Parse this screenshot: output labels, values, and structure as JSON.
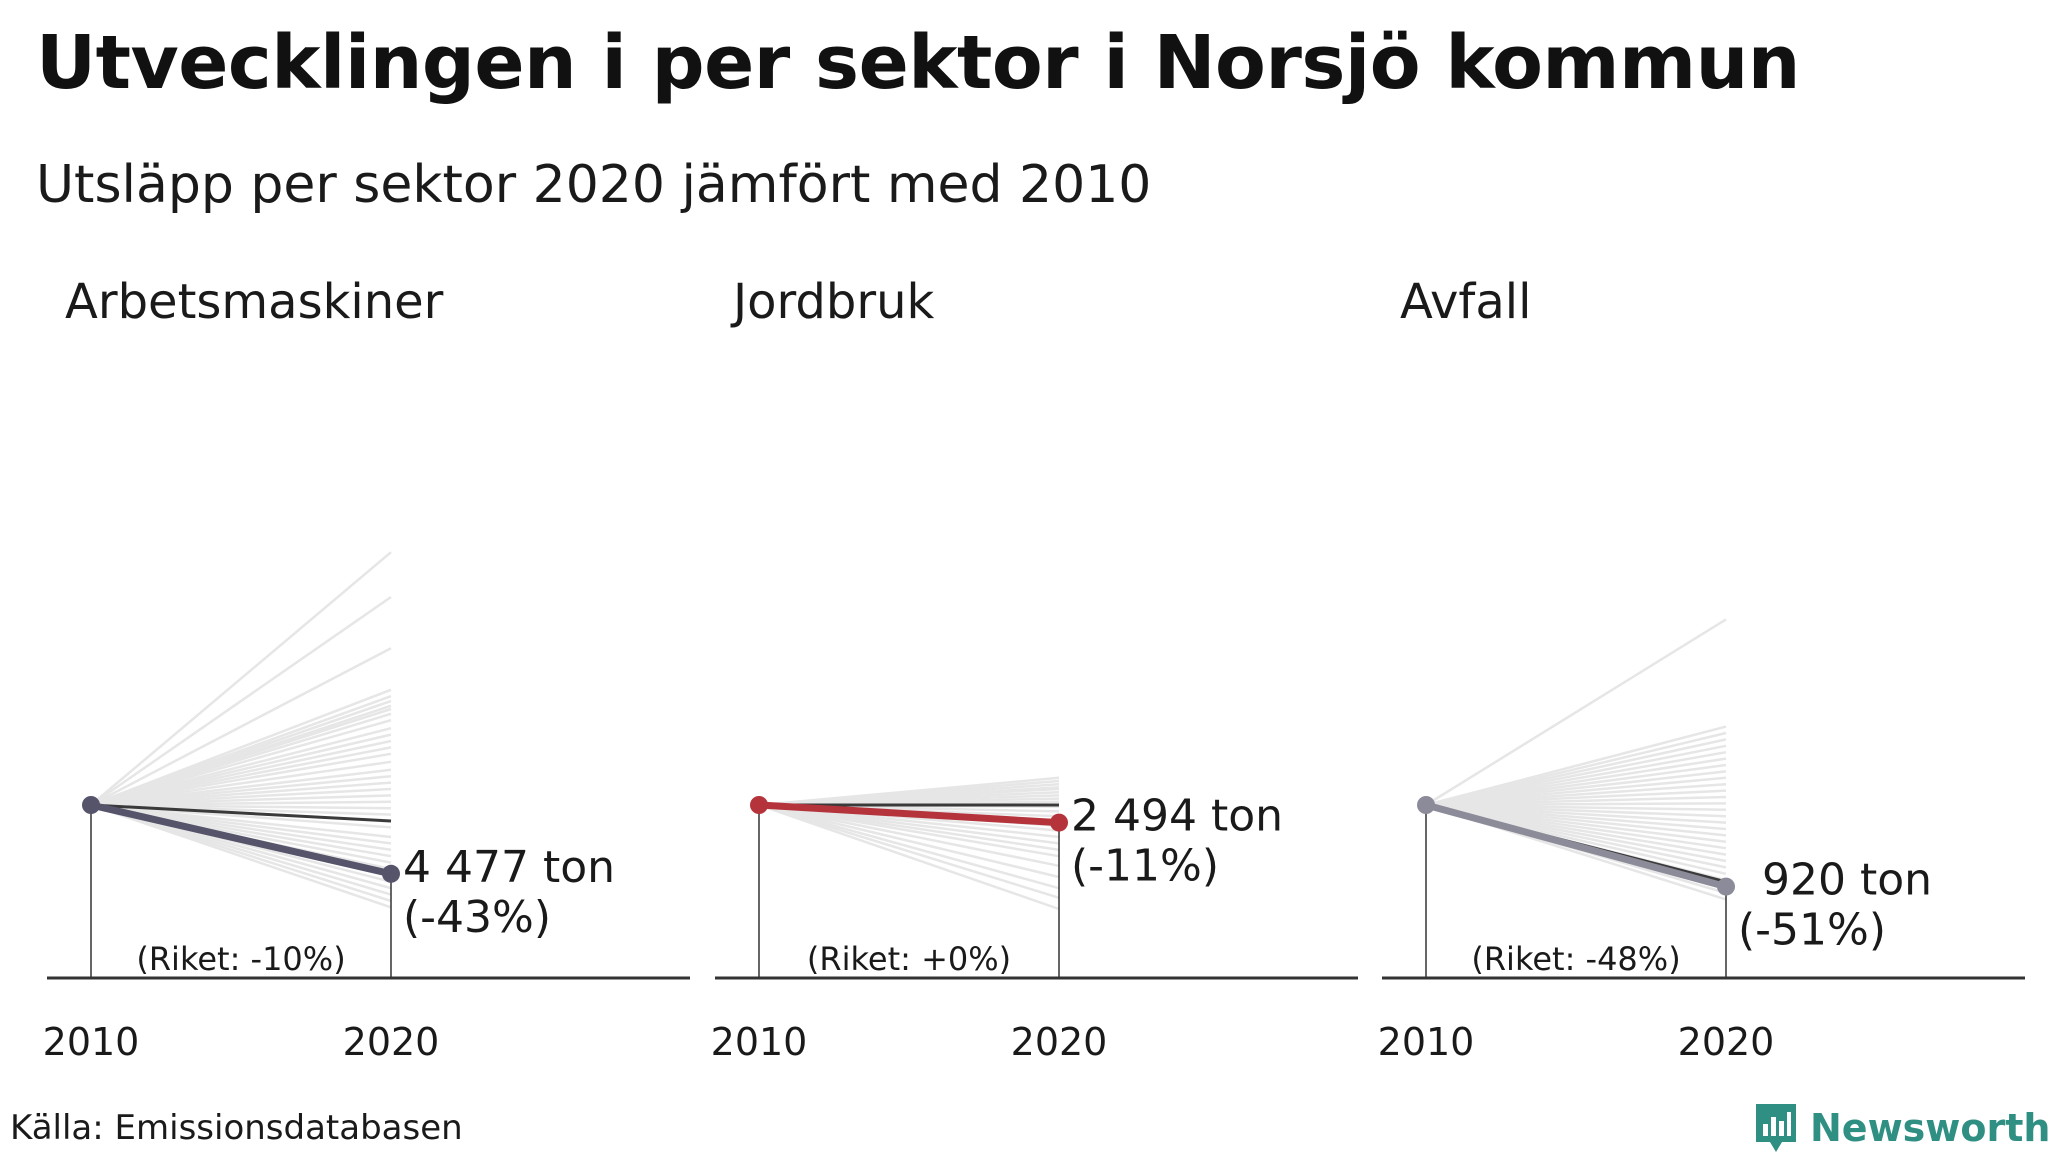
{
  "title": "Utvecklingen i per sektor i Norsjö kommun",
  "subtitle": "Utsläpp per sektor 2020 jämfört med 2010",
  "source": "Källa: Emissionsdatabasen",
  "brand": {
    "name": "Newsworthy",
    "icon": "newsworthy-logo-icon",
    "color": "#2f8f83"
  },
  "colors": {
    "background_lines": "#e6e6e6",
    "national": "#3a3a3a",
    "axis": "#333333",
    "text": "#1a1a1a"
  },
  "chart_data": [
    {
      "type": "line",
      "title": "Arbetsmaskiner",
      "x": [
        "2010",
        "2020"
      ],
      "highlight_color": "#55546a",
      "municipality": {
        "start": 100,
        "end": 57,
        "change_pct": -43,
        "value_label": "4 477 ton",
        "change_label": "(-43%)"
      },
      "national": {
        "start": 100,
        "end": 90,
        "change_pct": -10,
        "label": "(Riket: -10%)"
      },
      "other_municipalities_2020": [
        258,
        230,
        198,
        172,
        168,
        165,
        162,
        160,
        157,
        153,
        148,
        144,
        140,
        136,
        132,
        127,
        122,
        118,
        114,
        110,
        106,
        102,
        98,
        94,
        90,
        86,
        80,
        76,
        72,
        68,
        64,
        60,
        56,
        52,
        48,
        44,
        40,
        36
      ]
    },
    {
      "type": "line",
      "title": "Jordbruk",
      "x": [
        "2010",
        "2020"
      ],
      "highlight_color": "#b5343c",
      "municipality": {
        "start": 100,
        "end": 89,
        "change_pct": -11,
        "value_label": "2 494 ton",
        "change_label": "(-11%)"
      },
      "national": {
        "start": 100,
        "end": 100,
        "change_pct": 0,
        "label": "(Riket: +0%)"
      },
      "other_municipalities_2020": [
        117,
        115,
        113,
        111,
        110,
        108,
        106,
        104,
        102,
        99,
        96,
        93,
        90,
        87,
        84,
        80,
        76,
        72,
        68,
        62,
        55,
        48,
        42,
        35
      ]
    },
    {
      "type": "line",
      "title": "Avfall",
      "x": [
        "2010",
        "2020"
      ],
      "highlight_color": "#8c8b99",
      "municipality": {
        "start": 100,
        "end": 49,
        "change_pct": -51,
        "value_label": "920 ton",
        "change_label": "(-51%)"
      },
      "national": {
        "start": 100,
        "end": 52,
        "change_pct": -48,
        "label": "(Riket: -48%)"
      },
      "other_municipalities_2020": [
        216,
        149,
        145,
        141,
        137,
        133,
        129,
        125,
        121,
        117,
        113,
        109,
        105,
        101,
        97,
        93,
        89,
        85,
        81,
        77,
        73,
        69,
        65,
        61,
        57,
        53,
        49,
        45,
        41
      ]
    }
  ]
}
